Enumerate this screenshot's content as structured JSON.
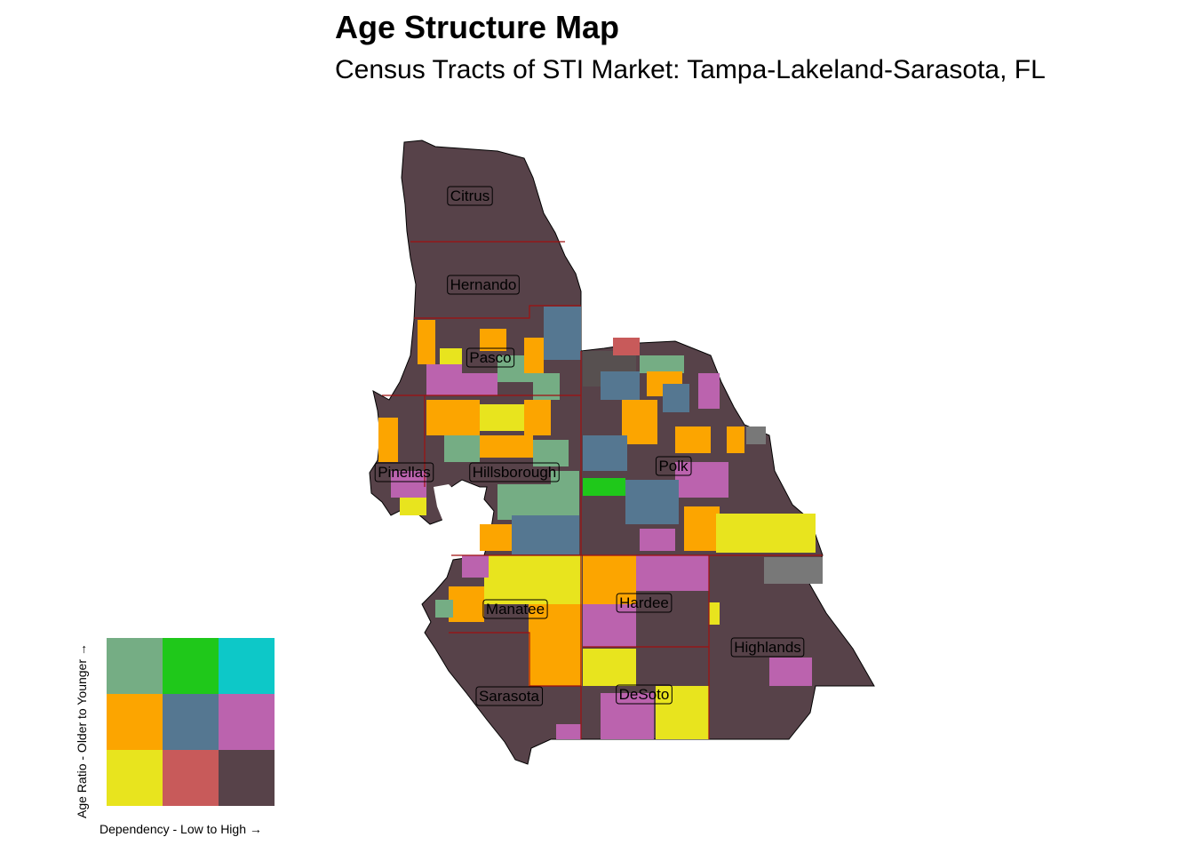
{
  "title": "Age Structure Map",
  "subtitle": "Census Tracts of STI Market: Tampa-Lakeland-Sarasota, FL",
  "colors": {
    "dark": "#574249",
    "red": "#c85a5a",
    "yellow": "#e8e41e",
    "orange": "#fca500",
    "blue": "#557791",
    "pink": "#bb63ae",
    "sage": "#75ad84",
    "green": "#1fc81a",
    "cyan": "#0dc8c8",
    "gray": "#787878",
    "border": "#a01010"
  },
  "counties": [
    {
      "name": "Citrus"
    },
    {
      "name": "Hernando"
    },
    {
      "name": "Pasco"
    },
    {
      "name": "Pinellas"
    },
    {
      "name": "Hillsborough"
    },
    {
      "name": "Polk"
    },
    {
      "name": "Manatee"
    },
    {
      "name": "Hardee"
    },
    {
      "name": "Highlands"
    },
    {
      "name": "Sarasota"
    },
    {
      "name": "DeSoto"
    }
  ],
  "legend": {
    "y_label": "Age Ratio - Older to Younger →",
    "x_label": "Dependency - Low to High →",
    "cells": [
      {
        "color": "#75ad84"
      },
      {
        "color": "#1fc81a"
      },
      {
        "color": "#0dc8c8"
      },
      {
        "color": "#fca500"
      },
      {
        "color": "#557791"
      },
      {
        "color": "#bb63ae"
      },
      {
        "color": "#e8e41e"
      },
      {
        "color": "#c85a5a"
      },
      {
        "color": "#574249"
      }
    ]
  }
}
